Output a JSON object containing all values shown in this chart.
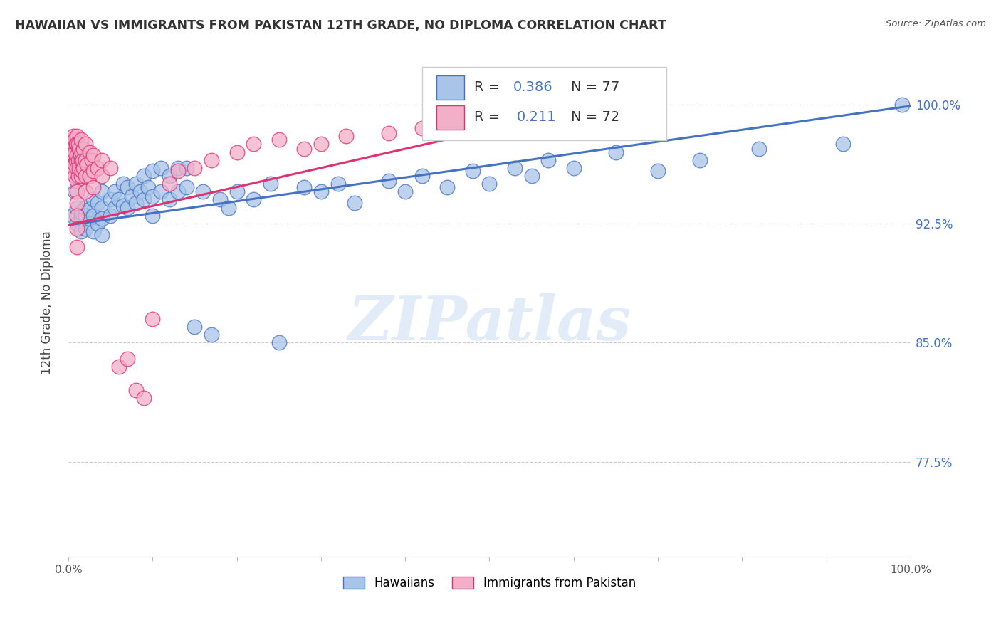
{
  "title": "HAWAIIAN VS IMMIGRANTS FROM PAKISTAN 12TH GRADE, NO DIPLOMA CORRELATION CHART",
  "source": "Source: ZipAtlas.com",
  "ylabel": "12th Grade, No Diploma",
  "ytick_labels": [
    "100.0%",
    "92.5%",
    "85.0%",
    "77.5%"
  ],
  "ytick_values": [
    1.0,
    0.925,
    0.85,
    0.775
  ],
  "xlim": [
    0.0,
    1.0
  ],
  "ylim": [
    0.715,
    1.035
  ],
  "watermark": "ZIPatlas",
  "legend_r_hawaiian": "R = 0.386",
  "legend_n_hawaiian": "N = 77",
  "legend_r_pakistan": "R =  0.211",
  "legend_n_pakistan": "N = 72",
  "color_hawaiian": "#a8c4e8",
  "color_pakistan": "#f4afc8",
  "line_color_hawaiian": "#4472c4",
  "line_color_pakistan": "#e03070",
  "hawaiian_x": [
    0.005,
    0.008,
    0.01,
    0.01,
    0.015,
    0.015,
    0.015,
    0.02,
    0.02,
    0.02,
    0.025,
    0.025,
    0.03,
    0.03,
    0.03,
    0.035,
    0.035,
    0.04,
    0.04,
    0.04,
    0.04,
    0.05,
    0.05,
    0.055,
    0.055,
    0.06,
    0.065,
    0.065,
    0.07,
    0.07,
    0.075,
    0.08,
    0.08,
    0.085,
    0.09,
    0.09,
    0.095,
    0.1,
    0.1,
    0.1,
    0.11,
    0.11,
    0.12,
    0.12,
    0.13,
    0.13,
    0.14,
    0.14,
    0.15,
    0.16,
    0.17,
    0.18,
    0.19,
    0.2,
    0.22,
    0.24,
    0.25,
    0.28,
    0.3,
    0.32,
    0.34,
    0.38,
    0.4,
    0.42,
    0.45,
    0.48,
    0.5,
    0.53,
    0.55,
    0.57,
    0.6,
    0.65,
    0.7,
    0.75,
    0.82,
    0.92,
    0.99
  ],
  "hawaiian_y": [
    0.93,
    0.945,
    0.925,
    0.935,
    0.928,
    0.932,
    0.92,
    0.935,
    0.93,
    0.922,
    0.928,
    0.934,
    0.94,
    0.93,
    0.92,
    0.938,
    0.925,
    0.935,
    0.945,
    0.928,
    0.918,
    0.94,
    0.93,
    0.945,
    0.935,
    0.94,
    0.95,
    0.936,
    0.948,
    0.935,
    0.942,
    0.95,
    0.938,
    0.945,
    0.955,
    0.94,
    0.948,
    0.958,
    0.942,
    0.93,
    0.96,
    0.945,
    0.955,
    0.94,
    0.96,
    0.945,
    0.96,
    0.948,
    0.86,
    0.945,
    0.855,
    0.94,
    0.935,
    0.945,
    0.94,
    0.95,
    0.85,
    0.948,
    0.945,
    0.95,
    0.938,
    0.952,
    0.945,
    0.955,
    0.948,
    0.958,
    0.95,
    0.96,
    0.955,
    0.965,
    0.96,
    0.97,
    0.958,
    0.965,
    0.972,
    0.975,
    1.0
  ],
  "pakistan_x": [
    0.002,
    0.003,
    0.005,
    0.005,
    0.005,
    0.005,
    0.006,
    0.007,
    0.007,
    0.008,
    0.008,
    0.008,
    0.008,
    0.009,
    0.009,
    0.01,
    0.01,
    0.01,
    0.01,
    0.01,
    0.01,
    0.01,
    0.01,
    0.01,
    0.01,
    0.012,
    0.012,
    0.012,
    0.013,
    0.013,
    0.014,
    0.015,
    0.015,
    0.015,
    0.016,
    0.016,
    0.017,
    0.018,
    0.018,
    0.02,
    0.02,
    0.02,
    0.02,
    0.022,
    0.025,
    0.025,
    0.028,
    0.03,
    0.03,
    0.03,
    0.035,
    0.04,
    0.04,
    0.05,
    0.06,
    0.07,
    0.08,
    0.09,
    0.1,
    0.12,
    0.13,
    0.15,
    0.17,
    0.2,
    0.22,
    0.25,
    0.28,
    0.3,
    0.33,
    0.38,
    0.42,
    0.45
  ],
  "pakistan_y": [
    0.97,
    0.965,
    0.978,
    0.972,
    0.965,
    0.958,
    0.98,
    0.975,
    0.968,
    0.978,
    0.97,
    0.962,
    0.955,
    0.975,
    0.965,
    0.98,
    0.975,
    0.968,
    0.96,
    0.952,
    0.945,
    0.938,
    0.93,
    0.922,
    0.91,
    0.975,
    0.965,
    0.955,
    0.972,
    0.96,
    0.968,
    0.978,
    0.965,
    0.955,
    0.97,
    0.958,
    0.965,
    0.972,
    0.96,
    0.975,
    0.965,
    0.955,
    0.945,
    0.962,
    0.97,
    0.955,
    0.965,
    0.968,
    0.958,
    0.948,
    0.96,
    0.965,
    0.955,
    0.96,
    0.835,
    0.84,
    0.82,
    0.815,
    0.865,
    0.95,
    0.958,
    0.96,
    0.965,
    0.97,
    0.975,
    0.978,
    0.972,
    0.975,
    0.98,
    0.982,
    0.985,
    0.988
  ]
}
